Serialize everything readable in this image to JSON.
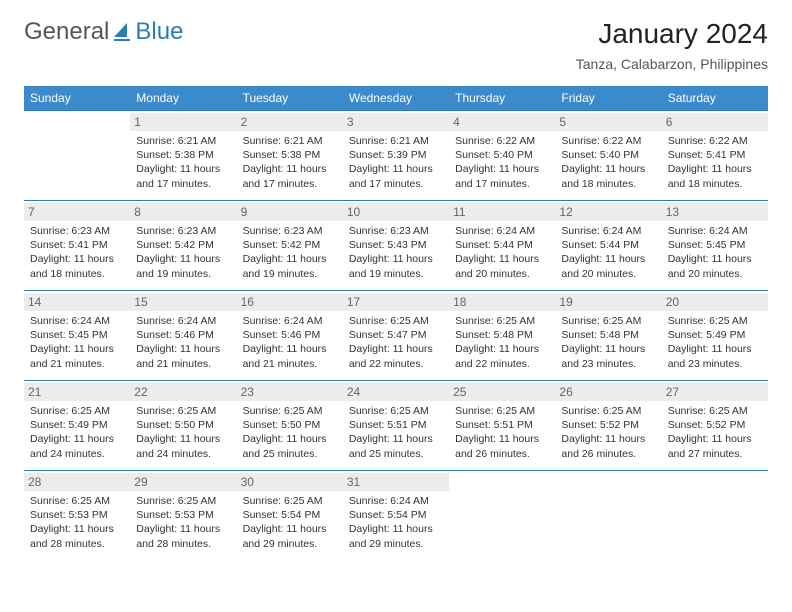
{
  "logo": {
    "general": "General",
    "blue": "Blue"
  },
  "title": "January 2024",
  "location": "Tanza, Calabarzon, Philippines",
  "colors": {
    "header_bg": "#3b8acb",
    "accent": "#2c7bb5",
    "daynum_bg": "#ececec",
    "text": "#333333",
    "muted": "#666666"
  },
  "weekdays": [
    "Sunday",
    "Monday",
    "Tuesday",
    "Wednesday",
    "Thursday",
    "Friday",
    "Saturday"
  ],
  "weeks": [
    [
      null,
      {
        "n": "1",
        "sr": "Sunrise: 6:21 AM",
        "ss": "Sunset: 5:38 PM",
        "dl": "Daylight: 11 hours and 17 minutes."
      },
      {
        "n": "2",
        "sr": "Sunrise: 6:21 AM",
        "ss": "Sunset: 5:38 PM",
        "dl": "Daylight: 11 hours and 17 minutes."
      },
      {
        "n": "3",
        "sr": "Sunrise: 6:21 AM",
        "ss": "Sunset: 5:39 PM",
        "dl": "Daylight: 11 hours and 17 minutes."
      },
      {
        "n": "4",
        "sr": "Sunrise: 6:22 AM",
        "ss": "Sunset: 5:40 PM",
        "dl": "Daylight: 11 hours and 17 minutes."
      },
      {
        "n": "5",
        "sr": "Sunrise: 6:22 AM",
        "ss": "Sunset: 5:40 PM",
        "dl": "Daylight: 11 hours and 18 minutes."
      },
      {
        "n": "6",
        "sr": "Sunrise: 6:22 AM",
        "ss": "Sunset: 5:41 PM",
        "dl": "Daylight: 11 hours and 18 minutes."
      }
    ],
    [
      {
        "n": "7",
        "sr": "Sunrise: 6:23 AM",
        "ss": "Sunset: 5:41 PM",
        "dl": "Daylight: 11 hours and 18 minutes."
      },
      {
        "n": "8",
        "sr": "Sunrise: 6:23 AM",
        "ss": "Sunset: 5:42 PM",
        "dl": "Daylight: 11 hours and 19 minutes."
      },
      {
        "n": "9",
        "sr": "Sunrise: 6:23 AM",
        "ss": "Sunset: 5:42 PM",
        "dl": "Daylight: 11 hours and 19 minutes."
      },
      {
        "n": "10",
        "sr": "Sunrise: 6:23 AM",
        "ss": "Sunset: 5:43 PM",
        "dl": "Daylight: 11 hours and 19 minutes."
      },
      {
        "n": "11",
        "sr": "Sunrise: 6:24 AM",
        "ss": "Sunset: 5:44 PM",
        "dl": "Daylight: 11 hours and 20 minutes."
      },
      {
        "n": "12",
        "sr": "Sunrise: 6:24 AM",
        "ss": "Sunset: 5:44 PM",
        "dl": "Daylight: 11 hours and 20 minutes."
      },
      {
        "n": "13",
        "sr": "Sunrise: 6:24 AM",
        "ss": "Sunset: 5:45 PM",
        "dl": "Daylight: 11 hours and 20 minutes."
      }
    ],
    [
      {
        "n": "14",
        "sr": "Sunrise: 6:24 AM",
        "ss": "Sunset: 5:45 PM",
        "dl": "Daylight: 11 hours and 21 minutes."
      },
      {
        "n": "15",
        "sr": "Sunrise: 6:24 AM",
        "ss": "Sunset: 5:46 PM",
        "dl": "Daylight: 11 hours and 21 minutes."
      },
      {
        "n": "16",
        "sr": "Sunrise: 6:24 AM",
        "ss": "Sunset: 5:46 PM",
        "dl": "Daylight: 11 hours and 21 minutes."
      },
      {
        "n": "17",
        "sr": "Sunrise: 6:25 AM",
        "ss": "Sunset: 5:47 PM",
        "dl": "Daylight: 11 hours and 22 minutes."
      },
      {
        "n": "18",
        "sr": "Sunrise: 6:25 AM",
        "ss": "Sunset: 5:48 PM",
        "dl": "Daylight: 11 hours and 22 minutes."
      },
      {
        "n": "19",
        "sr": "Sunrise: 6:25 AM",
        "ss": "Sunset: 5:48 PM",
        "dl": "Daylight: 11 hours and 23 minutes."
      },
      {
        "n": "20",
        "sr": "Sunrise: 6:25 AM",
        "ss": "Sunset: 5:49 PM",
        "dl": "Daylight: 11 hours and 23 minutes."
      }
    ],
    [
      {
        "n": "21",
        "sr": "Sunrise: 6:25 AM",
        "ss": "Sunset: 5:49 PM",
        "dl": "Daylight: 11 hours and 24 minutes."
      },
      {
        "n": "22",
        "sr": "Sunrise: 6:25 AM",
        "ss": "Sunset: 5:50 PM",
        "dl": "Daylight: 11 hours and 24 minutes."
      },
      {
        "n": "23",
        "sr": "Sunrise: 6:25 AM",
        "ss": "Sunset: 5:50 PM",
        "dl": "Daylight: 11 hours and 25 minutes."
      },
      {
        "n": "24",
        "sr": "Sunrise: 6:25 AM",
        "ss": "Sunset: 5:51 PM",
        "dl": "Daylight: 11 hours and 25 minutes."
      },
      {
        "n": "25",
        "sr": "Sunrise: 6:25 AM",
        "ss": "Sunset: 5:51 PM",
        "dl": "Daylight: 11 hours and 26 minutes."
      },
      {
        "n": "26",
        "sr": "Sunrise: 6:25 AM",
        "ss": "Sunset: 5:52 PM",
        "dl": "Daylight: 11 hours and 26 minutes."
      },
      {
        "n": "27",
        "sr": "Sunrise: 6:25 AM",
        "ss": "Sunset: 5:52 PM",
        "dl": "Daylight: 11 hours and 27 minutes."
      }
    ],
    [
      {
        "n": "28",
        "sr": "Sunrise: 6:25 AM",
        "ss": "Sunset: 5:53 PM",
        "dl": "Daylight: 11 hours and 28 minutes."
      },
      {
        "n": "29",
        "sr": "Sunrise: 6:25 AM",
        "ss": "Sunset: 5:53 PM",
        "dl": "Daylight: 11 hours and 28 minutes."
      },
      {
        "n": "30",
        "sr": "Sunrise: 6:25 AM",
        "ss": "Sunset: 5:54 PM",
        "dl": "Daylight: 11 hours and 29 minutes."
      },
      {
        "n": "31",
        "sr": "Sunrise: 6:24 AM",
        "ss": "Sunset: 5:54 PM",
        "dl": "Daylight: 11 hours and 29 minutes."
      },
      null,
      null,
      null
    ]
  ]
}
